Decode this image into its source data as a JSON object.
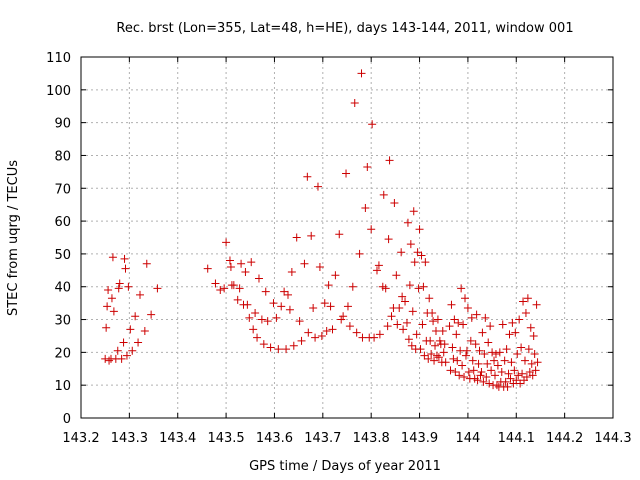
{
  "chart_data": {
    "type": "scatter",
    "title": "Rec. brst (Lon=355, Lat=48, h=HE), days 143-144, 2011, window 001",
    "xlabel": "GPS time / Days of year 2011",
    "ylabel": "STEC from uqrg / TECUs",
    "xlim": [
      143.2,
      144.3
    ],
    "ylim": [
      0,
      110
    ],
    "x_ticks": [
      "143.2",
      "143.3",
      "143.4",
      "143.5",
      "143.6",
      "143.7",
      "143.8",
      "143.9",
      "144",
      "144.1",
      "144.2",
      "144.3"
    ],
    "y_ticks": [
      "0",
      "10",
      "20",
      "30",
      "40",
      "50",
      "60",
      "70",
      "80",
      "90",
      "100",
      "110"
    ],
    "grid": true,
    "marker": "+",
    "color": "#cc0000",
    "series": [
      {
        "points": [
          [
            143.25,
            18
          ],
          [
            143.252,
            27.5
          ],
          [
            143.254,
            34
          ],
          [
            143.256,
            39
          ],
          [
            143.258,
            17.5
          ],
          [
            143.262,
            18
          ],
          [
            143.264,
            36.5
          ],
          [
            143.266,
            49
          ],
          [
            143.268,
            32.5
          ],
          [
            143.272,
            18
          ],
          [
            143.276,
            20.5
          ],
          [
            143.278,
            39.5
          ],
          [
            143.28,
            41
          ],
          [
            143.284,
            18
          ],
          [
            143.288,
            23
          ],
          [
            143.29,
            48.5
          ],
          [
            143.292,
            45.5
          ],
          [
            143.295,
            19
          ],
          [
            143.298,
            40
          ],
          [
            143.302,
            27
          ],
          [
            143.306,
            20.5
          ],
          [
            143.312,
            31
          ],
          [
            143.318,
            23
          ],
          [
            143.322,
            37.5
          ],
          [
            143.332,
            26.5
          ],
          [
            143.336,
            47
          ],
          [
            143.345,
            31.5
          ],
          [
            143.358,
            39.5
          ],
          [
            143.462,
            45.5
          ],
          [
            143.478,
            41
          ],
          [
            143.488,
            39
          ],
          [
            143.496,
            39.5
          ],
          [
            143.5,
            53.5
          ],
          [
            143.508,
            48
          ],
          [
            143.51,
            46
          ],
          [
            143.512,
            40.5
          ],
          [
            143.516,
            40.5
          ],
          [
            143.524,
            36
          ],
          [
            143.528,
            39.5
          ],
          [
            143.531,
            47
          ],
          [
            143.536,
            34.5
          ],
          [
            143.54,
            44.5
          ],
          [
            143.544,
            34.5
          ],
          [
            143.548,
            30.5
          ],
          [
            143.552,
            47.5
          ],
          [
            143.556,
            27
          ],
          [
            143.56,
            32
          ],
          [
            143.564,
            24.5
          ],
          [
            143.568,
            42.5
          ],
          [
            143.574,
            30
          ],
          [
            143.578,
            22.5
          ],
          [
            143.582,
            38.5
          ],
          [
            143.586,
            29.5
          ],
          [
            143.592,
            21.5
          ],
          [
            143.598,
            35
          ],
          [
            143.604,
            30.5
          ],
          [
            143.608,
            21
          ],
          [
            143.614,
            34
          ],
          [
            143.62,
            38.5
          ],
          [
            143.624,
            21
          ],
          [
            143.628,
            37.5
          ],
          [
            143.632,
            33
          ],
          [
            143.636,
            44.5
          ],
          [
            143.64,
            22
          ],
          [
            143.646,
            55
          ],
          [
            143.652,
            29.5
          ],
          [
            143.656,
            23.5
          ],
          [
            143.662,
            47
          ],
          [
            143.668,
            73.5
          ],
          [
            143.67,
            26
          ],
          [
            143.676,
            55.5
          ],
          [
            143.68,
            33.5
          ],
          [
            143.684,
            24.5
          ],
          [
            143.69,
            70.5
          ],
          [
            143.694,
            46
          ],
          [
            143.698,
            25
          ],
          [
            143.704,
            35
          ],
          [
            143.708,
            26.5
          ],
          [
            143.712,
            40.5
          ],
          [
            143.716,
            34
          ],
          [
            143.72,
            27
          ],
          [
            143.726,
            43.5
          ],
          [
            143.734,
            56
          ],
          [
            143.738,
            30
          ],
          [
            143.742,
            31
          ],
          [
            143.748,
            74.5
          ],
          [
            143.752,
            34
          ],
          [
            143.756,
            28
          ],
          [
            143.762,
            40
          ],
          [
            143.766,
            96
          ],
          [
            143.77,
            26
          ],
          [
            143.776,
            50
          ],
          [
            143.78,
            105
          ],
          [
            143.782,
            24.5
          ],
          [
            143.788,
            64
          ],
          [
            143.792,
            76.5
          ],
          [
            143.796,
            24.5
          ],
          [
            143.8,
            57.5
          ],
          [
            143.802,
            89.5
          ],
          [
            143.806,
            24.5
          ],
          [
            143.812,
            45
          ],
          [
            143.816,
            46.5
          ],
          [
            143.818,
            25.5
          ],
          [
            143.824,
            40
          ],
          [
            143.826,
            68
          ],
          [
            143.83,
            39.5
          ],
          [
            143.834,
            28
          ],
          [
            143.836,
            54.5
          ],
          [
            143.838,
            78.5
          ],
          [
            143.842,
            31
          ],
          [
            143.846,
            33.5
          ],
          [
            143.848,
            65.5
          ],
          [
            143.852,
            43.5
          ],
          [
            143.854,
            28.5
          ],
          [
            143.858,
            33.5
          ],
          [
            143.862,
            50.5
          ],
          [
            143.864,
            37
          ],
          [
            143.866,
            27
          ],
          [
            143.87,
            35.5
          ],
          [
            143.874,
            29
          ],
          [
            143.876,
            59.5
          ],
          [
            143.878,
            24
          ],
          [
            143.88,
            40.5
          ],
          [
            143.882,
            53
          ],
          [
            143.884,
            22
          ],
          [
            143.886,
            32.5
          ],
          [
            143.888,
            63
          ],
          [
            143.89,
            47.5
          ],
          [
            143.892,
            21
          ],
          [
            143.894,
            25.5
          ],
          [
            143.896,
            50.5
          ],
          [
            143.898,
            39.5
          ],
          [
            143.9,
            57.5
          ],
          [
            143.902,
            21
          ],
          [
            143.904,
            49.5
          ],
          [
            143.906,
            28.5
          ],
          [
            143.908,
            40
          ],
          [
            143.91,
            19
          ],
          [
            143.912,
            47.5
          ],
          [
            143.914,
            23.5
          ],
          [
            143.916,
            32
          ],
          [
            143.918,
            18
          ],
          [
            143.92,
            36.5
          ],
          [
            143.922,
            23.5
          ],
          [
            143.924,
            19.5
          ],
          [
            143.926,
            32
          ],
          [
            143.928,
            29.5
          ],
          [
            143.93,
            17.5
          ],
          [
            143.932,
            22
          ],
          [
            143.934,
            26.5
          ],
          [
            143.936,
            19
          ],
          [
            143.938,
            30
          ],
          [
            143.94,
            18.5
          ],
          [
            143.942,
            23.5
          ],
          [
            143.944,
            22.5
          ],
          [
            143.946,
            17
          ],
          [
            143.948,
            26.5
          ],
          [
            143.95,
            20
          ],
          [
            143.952,
            22.5
          ],
          [
            143.954,
            17
          ],
          [
            143.962,
            28
          ],
          [
            143.964,
            14.5
          ],
          [
            143.966,
            34.5
          ],
          [
            143.968,
            21.5
          ],
          [
            143.97,
            18
          ],
          [
            143.972,
            30
          ],
          [
            143.974,
            14
          ],
          [
            143.976,
            25.5
          ],
          [
            143.978,
            17.5
          ],
          [
            143.98,
            29
          ],
          [
            143.982,
            13
          ],
          [
            143.984,
            20.5
          ],
          [
            143.986,
            39.5
          ],
          [
            143.988,
            16
          ],
          [
            143.99,
            28.5
          ],
          [
            143.992,
            12.5
          ],
          [
            143.994,
            36.5
          ],
          [
            143.996,
            19
          ],
          [
            143.998,
            20.5
          ],
          [
            144.0,
            33.5
          ],
          [
            144.002,
            14
          ],
          [
            144.004,
            12
          ],
          [
            144.006,
            23.5
          ],
          [
            144.008,
            30.5
          ],
          [
            144.01,
            17.5
          ],
          [
            144.012,
            14.5
          ],
          [
            144.014,
            12
          ],
          [
            144.016,
            22.5
          ],
          [
            144.018,
            31.5
          ],
          [
            144.02,
            11.5
          ],
          [
            144.022,
            16.5
          ],
          [
            144.024,
            20.5
          ],
          [
            144.026,
            13
          ],
          [
            144.028,
            14
          ],
          [
            144.03,
            26
          ],
          [
            144.032,
            11
          ],
          [
            144.034,
            19.5
          ],
          [
            144.036,
            30.5
          ],
          [
            144.038,
            12.5
          ],
          [
            144.04,
            16.5
          ],
          [
            144.042,
            23
          ],
          [
            144.044,
            10.5
          ],
          [
            144.046,
            28
          ],
          [
            144.048,
            14.5
          ],
          [
            144.05,
            20
          ],
          [
            144.052,
            10
          ],
          [
            144.054,
            17.5
          ],
          [
            144.056,
            13
          ],
          [
            144.058,
            19.5
          ],
          [
            144.06,
            10
          ],
          [
            144.062,
            16
          ],
          [
            144.064,
            9.5
          ],
          [
            144.066,
            20
          ],
          [
            144.068,
            11
          ],
          [
            144.07,
            14
          ],
          [
            144.072,
            28.5
          ],
          [
            144.074,
            9.5
          ],
          [
            144.076,
            17.5
          ],
          [
            144.078,
            11
          ],
          [
            144.08,
            21
          ],
          [
            144.082,
            9.5
          ],
          [
            144.084,
            13.5
          ],
          [
            144.086,
            25.5
          ],
          [
            144.088,
            12
          ],
          [
            144.09,
            17
          ],
          [
            144.092,
            29
          ],
          [
            144.094,
            10.5
          ],
          [
            144.096,
            14.5
          ],
          [
            144.098,
            26
          ],
          [
            144.1,
            11.5
          ],
          [
            144.102,
            19.5
          ],
          [
            144.104,
            13
          ],
          [
            144.106,
            30
          ],
          [
            144.108,
            10.5
          ],
          [
            144.11,
            21.5
          ],
          [
            144.112,
            13.5
          ],
          [
            144.114,
            35.5
          ],
          [
            144.116,
            11.5
          ],
          [
            144.118,
            17.5
          ],
          [
            144.12,
            32
          ],
          [
            144.122,
            12.5
          ],
          [
            144.124,
            36.5
          ],
          [
            144.126,
            21
          ],
          [
            144.128,
            14
          ],
          [
            144.13,
            27.5
          ],
          [
            144.132,
            16.5
          ],
          [
            144.134,
            13
          ],
          [
            144.136,
            25
          ],
          [
            144.138,
            19.5
          ],
          [
            144.14,
            14.5
          ],
          [
            144.142,
            34.5
          ],
          [
            144.144,
            17
          ]
        ]
      }
    ]
  }
}
